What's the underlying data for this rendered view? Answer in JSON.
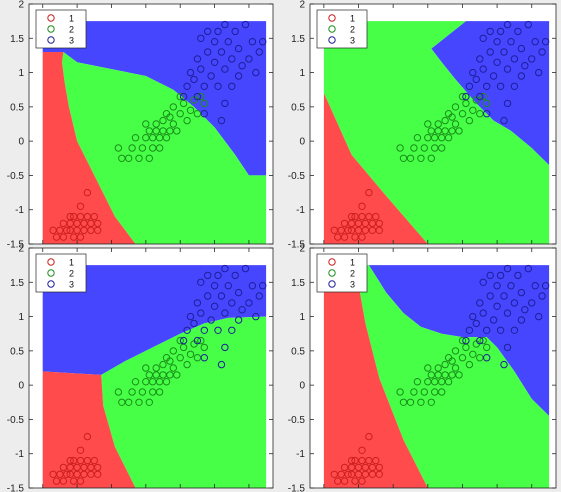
{
  "figure": {
    "background": "#ededed",
    "region_colors": {
      "1": "#ff4b4b",
      "2": "#46ff46",
      "3": "#4646ff"
    },
    "point_colors": {
      "1": "#cc1f1f",
      "2": "#1a8f1a",
      "3": "#1f1f9a"
    }
  },
  "chart_data": [
    {
      "type": "scatter",
      "title": "",
      "xlabel": "",
      "ylabel": "",
      "xlim": [
        -1.7,
        1.85
      ],
      "ylim": [
        -1.5,
        2
      ],
      "yticks": [
        -1.5,
        -1,
        -0.5,
        0,
        0.5,
        1,
        1.5,
        2
      ],
      "ytick_labels": [
        "-1.5",
        "-1",
        "-0.5",
        "0",
        "0.5",
        "1",
        "1.5",
        "2"
      ],
      "grid": false,
      "legend": {
        "position": "top-left",
        "entries": [
          "1",
          "2",
          "3"
        ]
      },
      "decision_region_polygons": [
        {
          "class": "3",
          "points": [
            [
              -1.5,
              1.75
            ],
            [
              1.75,
              1.75
            ],
            [
              1.75,
              -0.5
            ],
            [
              1.5,
              -0.5
            ],
            [
              1.3,
              -0.2
            ],
            [
              1.0,
              0.2
            ],
            [
              0.7,
              0.5
            ],
            [
              0.4,
              0.75
            ],
            [
              0.0,
              0.95
            ],
            [
              -0.5,
              1.05
            ],
            [
              -1.0,
              1.15
            ],
            [
              -1.2,
              1.3
            ],
            [
              -1.5,
              1.3
            ]
          ]
        },
        {
          "class": "2",
          "points": [
            [
              -1.2,
              1.3
            ],
            [
              -1.0,
              1.15
            ],
            [
              -0.5,
              1.05
            ],
            [
              0.0,
              0.95
            ],
            [
              0.4,
              0.75
            ],
            [
              0.7,
              0.5
            ],
            [
              1.0,
              0.2
            ],
            [
              1.3,
              -0.2
            ],
            [
              1.5,
              -0.5
            ],
            [
              1.75,
              -0.5
            ],
            [
              1.75,
              -1.5
            ],
            [
              -0.15,
              -1.5
            ],
            [
              -0.45,
              -1.1
            ],
            [
              -0.7,
              -0.6
            ],
            [
              -1.0,
              0.0
            ],
            [
              -1.12,
              0.5
            ],
            [
              -1.18,
              0.85
            ],
            [
              -1.22,
              1.15
            ]
          ]
        },
        {
          "class": "1",
          "points": [
            [
              -1.5,
              1.3
            ],
            [
              -1.2,
              1.3
            ],
            [
              -1.22,
              1.15
            ],
            [
              -1.18,
              0.85
            ],
            [
              -1.12,
              0.5
            ],
            [
              -1.0,
              0.0
            ],
            [
              -0.7,
              -0.6
            ],
            [
              -0.45,
              -1.1
            ],
            [
              -0.15,
              -1.5
            ],
            [
              -1.5,
              -1.5
            ]
          ]
        }
      ]
    },
    {
      "type": "scatter",
      "title": "",
      "xlabel": "",
      "ylabel": "",
      "xlim": [
        -1.7,
        1.85
      ],
      "ylim": [
        -1.5,
        2
      ],
      "yticks": [
        -1.5,
        -1,
        -0.5,
        0,
        0.5,
        1,
        1.5,
        2
      ],
      "ytick_labels": [
        "-1.5",
        "-1",
        "-0.5",
        "0",
        "0.5",
        "1",
        "1.5",
        "2"
      ],
      "grid": false,
      "legend": {
        "position": "top-left",
        "entries": [
          "1",
          "2",
          "3"
        ]
      },
      "decision_region_polygons": [
        {
          "class": "3",
          "points": [
            [
              0.55,
              1.75
            ],
            [
              1.75,
              1.75
            ],
            [
              1.75,
              -0.35
            ],
            [
              1.5,
              -0.1
            ],
            [
              1.2,
              0.15
            ],
            [
              0.95,
              0.3
            ],
            [
              0.7,
              0.55
            ],
            [
              0.4,
              0.9
            ],
            [
              0.2,
              1.15
            ],
            [
              0.05,
              1.35
            ]
          ]
        },
        {
          "class": "2",
          "points": [
            [
              -1.5,
              1.75
            ],
            [
              0.55,
              1.75
            ],
            [
              0.05,
              1.35
            ],
            [
              0.2,
              1.15
            ],
            [
              0.4,
              0.9
            ],
            [
              0.7,
              0.55
            ],
            [
              0.95,
              0.3
            ],
            [
              1.2,
              0.15
            ],
            [
              1.5,
              -0.1
            ],
            [
              1.75,
              -0.35
            ],
            [
              1.75,
              -1.5
            ],
            [
              0.0,
              -1.5
            ],
            [
              -0.6,
              -0.8
            ],
            [
              -1.1,
              -0.2
            ],
            [
              -1.5,
              0.7
            ]
          ]
        },
        {
          "class": "1",
          "points": [
            [
              -1.5,
              0.7
            ],
            [
              -1.1,
              -0.2
            ],
            [
              -0.6,
              -0.8
            ],
            [
              0.0,
              -1.5
            ],
            [
              -1.5,
              -1.5
            ]
          ]
        }
      ]
    },
    {
      "type": "scatter",
      "title": "",
      "xlabel": "",
      "ylabel": "",
      "xlim": [
        -1.7,
        1.85
      ],
      "ylim": [
        -1.5,
        2
      ],
      "yticks": [
        -1.5,
        -1,
        -0.5,
        0,
        0.5,
        1,
        1.5,
        2
      ],
      "ytick_labels": [
        "-1.5",
        "-1",
        "-0.5",
        "0",
        "0.5",
        "1",
        "1.5",
        "2"
      ],
      "grid": false,
      "legend": {
        "position": "top-left",
        "entries": [
          "1",
          "2",
          "3"
        ]
      },
      "decision_region_polygons": [
        {
          "class": "3",
          "points": [
            [
              -1.5,
              1.75
            ],
            [
              1.75,
              1.75
            ],
            [
              1.75,
              1.0
            ],
            [
              1.2,
              0.98
            ],
            [
              0.85,
              0.9
            ],
            [
              0.5,
              0.75
            ],
            [
              0.1,
              0.55
            ],
            [
              -0.3,
              0.35
            ],
            [
              -0.65,
              0.15
            ],
            [
              -1.0,
              0.17
            ],
            [
              -1.5,
              0.2
            ]
          ]
        },
        {
          "class": "2",
          "points": [
            [
              -0.65,
              0.15
            ],
            [
              -0.3,
              0.35
            ],
            [
              0.1,
              0.55
            ],
            [
              0.5,
              0.75
            ],
            [
              0.85,
              0.9
            ],
            [
              1.2,
              0.98
            ],
            [
              1.75,
              1.0
            ],
            [
              1.75,
              -1.5
            ],
            [
              -0.15,
              -1.5
            ],
            [
              -0.45,
              -0.9
            ],
            [
              -0.62,
              -0.3
            ]
          ]
        },
        {
          "class": "1",
          "points": [
            [
              -1.5,
              0.2
            ],
            [
              -1.0,
              0.17
            ],
            [
              -0.65,
              0.15
            ],
            [
              -0.62,
              -0.3
            ],
            [
              -0.45,
              -0.9
            ],
            [
              -0.15,
              -1.5
            ],
            [
              -1.5,
              -1.5
            ]
          ]
        }
      ]
    },
    {
      "type": "scatter",
      "title": "",
      "xlabel": "",
      "ylabel": "",
      "xlim": [
        -1.7,
        1.85
      ],
      "ylim": [
        -1.5,
        2
      ],
      "yticks": [
        -1.5,
        -1,
        -0.5,
        0,
        0.5,
        1,
        1.5,
        2
      ],
      "ytick_labels": [
        "-1.5",
        "-1",
        "-0.5",
        "0",
        "0.5",
        "1",
        "1.5",
        "2"
      ],
      "grid": false,
      "legend": {
        "position": "top-left",
        "entries": [
          "1",
          "2",
          "3"
        ]
      },
      "decision_region_polygons": [
        {
          "class": "3",
          "points": [
            [
              -0.85,
              1.75
            ],
            [
              1.75,
              1.75
            ],
            [
              1.75,
              -0.45
            ],
            [
              1.5,
              -0.2
            ],
            [
              1.25,
              0.2
            ],
            [
              1.0,
              0.55
            ],
            [
              0.85,
              0.7
            ],
            [
              0.5,
              0.7
            ],
            [
              0.2,
              0.75
            ],
            [
              -0.1,
              0.85
            ],
            [
              -0.35,
              1.05
            ],
            [
              -0.6,
              1.35
            ]
          ]
        },
        {
          "class": "2",
          "points": [
            [
              -1.05,
              1.75
            ],
            [
              -0.85,
              1.75
            ],
            [
              -0.6,
              1.35
            ],
            [
              -0.35,
              1.05
            ],
            [
              -0.1,
              0.85
            ],
            [
              0.2,
              0.75
            ],
            [
              0.5,
              0.7
            ],
            [
              0.85,
              0.7
            ],
            [
              1.0,
              0.55
            ],
            [
              1.25,
              0.2
            ],
            [
              1.5,
              -0.2
            ],
            [
              1.75,
              -0.45
            ],
            [
              1.75,
              -1.5
            ],
            [
              0.0,
              -1.5
            ],
            [
              -0.35,
              -0.8
            ],
            [
              -0.7,
              0.1
            ],
            [
              -0.9,
              0.9
            ]
          ]
        },
        {
          "class": "1",
          "points": [
            [
              -1.5,
              1.75
            ],
            [
              -1.05,
              1.75
            ],
            [
              -0.9,
              0.9
            ],
            [
              -0.7,
              0.1
            ],
            [
              -0.35,
              -0.8
            ],
            [
              0.0,
              -1.5
            ],
            [
              -1.5,
              -1.5
            ]
          ]
        }
      ]
    }
  ],
  "points": [
    {
      "class": "1",
      "x": -1.35,
      "y": -1.3
    },
    {
      "class": "1",
      "x": -1.3,
      "y": -1.4
    },
    {
      "class": "1",
      "x": -1.25,
      "y": -1.3
    },
    {
      "class": "1",
      "x": -1.2,
      "y": -1.2
    },
    {
      "class": "1",
      "x": -1.2,
      "y": -1.4
    },
    {
      "class": "1",
      "x": -1.15,
      "y": -1.3
    },
    {
      "class": "1",
      "x": -1.1,
      "y": -1.1
    },
    {
      "class": "1",
      "x": -1.1,
      "y": -1.2
    },
    {
      "class": "1",
      "x": -1.1,
      "y": -1.3
    },
    {
      "class": "1",
      "x": -1.05,
      "y": -1.4
    },
    {
      "class": "1",
      "x": -1.0,
      "y": -1.2
    },
    {
      "class": "1",
      "x": -1.0,
      "y": -1.3
    },
    {
      "class": "1",
      "x": -0.95,
      "y": -1.1
    },
    {
      "class": "1",
      "x": -0.95,
      "y": -0.95
    },
    {
      "class": "1",
      "x": -0.9,
      "y": -1.2
    },
    {
      "class": "1",
      "x": -0.9,
      "y": -1.3
    },
    {
      "class": "1",
      "x": -0.85,
      "y": -1.1
    },
    {
      "class": "1",
      "x": -0.85,
      "y": -0.75
    },
    {
      "class": "1",
      "x": -0.8,
      "y": -1.2
    },
    {
      "class": "1",
      "x": -0.8,
      "y": -1.3
    },
    {
      "class": "1",
      "x": -0.75,
      "y": -1.1
    },
    {
      "class": "1",
      "x": -0.7,
      "y": -1.2
    },
    {
      "class": "1",
      "x": -0.7,
      "y": -1.3
    },
    {
      "class": "1",
      "x": -1.05,
      "y": -1.1
    },
    {
      "class": "1",
      "x": -0.95,
      "y": -1.4
    },
    {
      "class": "2",
      "x": -0.4,
      "y": -0.1
    },
    {
      "class": "2",
      "x": -0.35,
      "y": -0.25
    },
    {
      "class": "2",
      "x": -0.25,
      "y": -0.25
    },
    {
      "class": "2",
      "x": -0.2,
      "y": -0.1
    },
    {
      "class": "2",
      "x": -0.15,
      "y": 0.05
    },
    {
      "class": "2",
      "x": -0.1,
      "y": -0.25
    },
    {
      "class": "2",
      "x": -0.05,
      "y": -0.1
    },
    {
      "class": "2",
      "x": 0.0,
      "y": 0.05
    },
    {
      "class": "2",
      "x": 0.0,
      "y": 0.25
    },
    {
      "class": "2",
      "x": 0.05,
      "y": -0.25
    },
    {
      "class": "2",
      "x": 0.05,
      "y": 0.15
    },
    {
      "class": "2",
      "x": 0.1,
      "y": -0.1
    },
    {
      "class": "2",
      "x": 0.1,
      "y": 0.05
    },
    {
      "class": "2",
      "x": 0.15,
      "y": 0.15
    },
    {
      "class": "2",
      "x": 0.15,
      "y": 0.25
    },
    {
      "class": "2",
      "x": 0.2,
      "y": -0.1
    },
    {
      "class": "2",
      "x": 0.2,
      "y": 0.05
    },
    {
      "class": "2",
      "x": 0.25,
      "y": 0.15
    },
    {
      "class": "2",
      "x": 0.25,
      "y": 0.3
    },
    {
      "class": "2",
      "x": 0.3,
      "y": 0.05
    },
    {
      "class": "2",
      "x": 0.3,
      "y": 0.4
    },
    {
      "class": "2",
      "x": 0.35,
      "y": 0.15
    },
    {
      "class": "2",
      "x": 0.4,
      "y": 0.25
    },
    {
      "class": "2",
      "x": 0.4,
      "y": 0.5
    },
    {
      "class": "2",
      "x": 0.45,
      "y": 0.15
    },
    {
      "class": "2",
      "x": 0.5,
      "y": 0.4
    },
    {
      "class": "2",
      "x": 0.55,
      "y": 0.55
    },
    {
      "class": "2",
      "x": 0.6,
      "y": 0.3
    },
    {
      "class": "2",
      "x": 0.65,
      "y": 0.45
    },
    {
      "class": "2",
      "x": 0.7,
      "y": 0.6
    },
    {
      "class": "2",
      "x": 0.75,
      "y": 0.4
    },
    {
      "class": "2",
      "x": 0.8,
      "y": 0.65
    },
    {
      "class": "2",
      "x": 0.85,
      "y": 0.55
    },
    {
      "class": "2",
      "x": 0.5,
      "y": 0.65
    },
    {
      "class": "2",
      "x": 0.35,
      "y": 0.35
    },
    {
      "class": "3",
      "x": 0.55,
      "y": 0.65
    },
    {
      "class": "3",
      "x": 0.6,
      "y": 0.8
    },
    {
      "class": "3",
      "x": 0.65,
      "y": 1.0
    },
    {
      "class": "3",
      "x": 0.7,
      "y": 0.9
    },
    {
      "class": "3",
      "x": 0.75,
      "y": 0.65
    },
    {
      "class": "3",
      "x": 0.75,
      "y": 1.2
    },
    {
      "class": "3",
      "x": 0.8,
      "y": 1.05
    },
    {
      "class": "3",
      "x": 0.8,
      "y": 1.5
    },
    {
      "class": "3",
      "x": 0.85,
      "y": 0.8
    },
    {
      "class": "3",
      "x": 0.85,
      "y": 0.4
    },
    {
      "class": "3",
      "x": 0.9,
      "y": 1.3
    },
    {
      "class": "3",
      "x": 0.9,
      "y": 1.6
    },
    {
      "class": "3",
      "x": 0.95,
      "y": 0.95
    },
    {
      "class": "3",
      "x": 1.0,
      "y": 1.15
    },
    {
      "class": "3",
      "x": 1.0,
      "y": 1.45
    },
    {
      "class": "3",
      "x": 1.05,
      "y": 0.8
    },
    {
      "class": "3",
      "x": 1.05,
      "y": 1.6
    },
    {
      "class": "3",
      "x": 1.1,
      "y": 1.3
    },
    {
      "class": "3",
      "x": 1.15,
      "y": 0.55
    },
    {
      "class": "3",
      "x": 1.15,
      "y": 1.05
    },
    {
      "class": "3",
      "x": 1.15,
      "y": 1.7
    },
    {
      "class": "3",
      "x": 1.2,
      "y": 1.45
    },
    {
      "class": "3",
      "x": 1.25,
      "y": 0.8
    },
    {
      "class": "3",
      "x": 1.25,
      "y": 1.2
    },
    {
      "class": "3",
      "x": 1.3,
      "y": 1.6
    },
    {
      "class": "3",
      "x": 1.35,
      "y": 0.95
    },
    {
      "class": "3",
      "x": 1.35,
      "y": 1.35
    },
    {
      "class": "3",
      "x": 1.4,
      "y": 1.1
    },
    {
      "class": "3",
      "x": 1.45,
      "y": 1.7
    },
    {
      "class": "3",
      "x": 1.5,
      "y": 1.2
    },
    {
      "class": "3",
      "x": 1.55,
      "y": 1.45
    },
    {
      "class": "3",
      "x": 1.6,
      "y": 1.0
    },
    {
      "class": "3",
      "x": 1.65,
      "y": 1.3
    },
    {
      "class": "3",
      "x": 1.7,
      "y": 1.45
    },
    {
      "class": "3",
      "x": 1.1,
      "y": 0.3
    }
  ]
}
